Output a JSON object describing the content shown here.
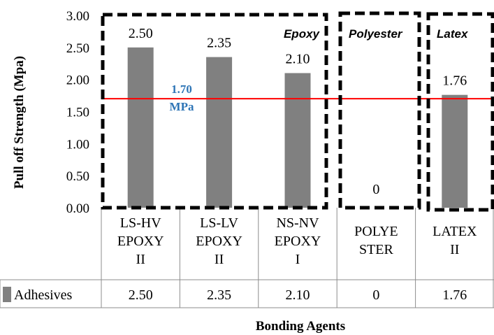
{
  "chart_data": {
    "type": "bar",
    "categories": [
      [
        "LS-HV",
        "EPOXY",
        "II"
      ],
      [
        "LS-LV",
        "EPOXY",
        "II"
      ],
      [
        "NS-NV",
        "EPOXY",
        "I"
      ],
      [
        "POLYE",
        "STER"
      ],
      [
        "LATEX",
        "II"
      ]
    ],
    "series": [
      {
        "name": "Adhesives",
        "values": [
          2.5,
          2.35,
          2.1,
          0,
          1.76
        ],
        "color": "#808080"
      }
    ],
    "data_labels": [
      "2.50",
      "2.35",
      "2.10",
      "0",
      "1.76"
    ],
    "ylabel": "Pull off Strength (Mpa)",
    "xlabel": "Bonding Agents",
    "ylim": [
      0,
      3
    ],
    "yticks": [
      "0.00",
      "0.50",
      "1.00",
      "1.50",
      "2.00",
      "2.50",
      "3.00"
    ],
    "reference_line": {
      "value": 1.7,
      "label_lines": [
        "1.70",
        "MPa"
      ],
      "color": "#ff0000",
      "label_color": "#2e75b6"
    },
    "groups": [
      {
        "label": "Epoxy",
        "categories": [
          0,
          1,
          2
        ]
      },
      {
        "label": "Polyester",
        "categories": [
          3
        ]
      },
      {
        "label": "Latex",
        "categories": [
          4
        ]
      }
    ],
    "data_table": {
      "row_label": "Adhesives",
      "values": [
        "2.50",
        "2.35",
        "2.10",
        "0",
        "1.76"
      ]
    },
    "grid": false,
    "legend": "data-table"
  }
}
